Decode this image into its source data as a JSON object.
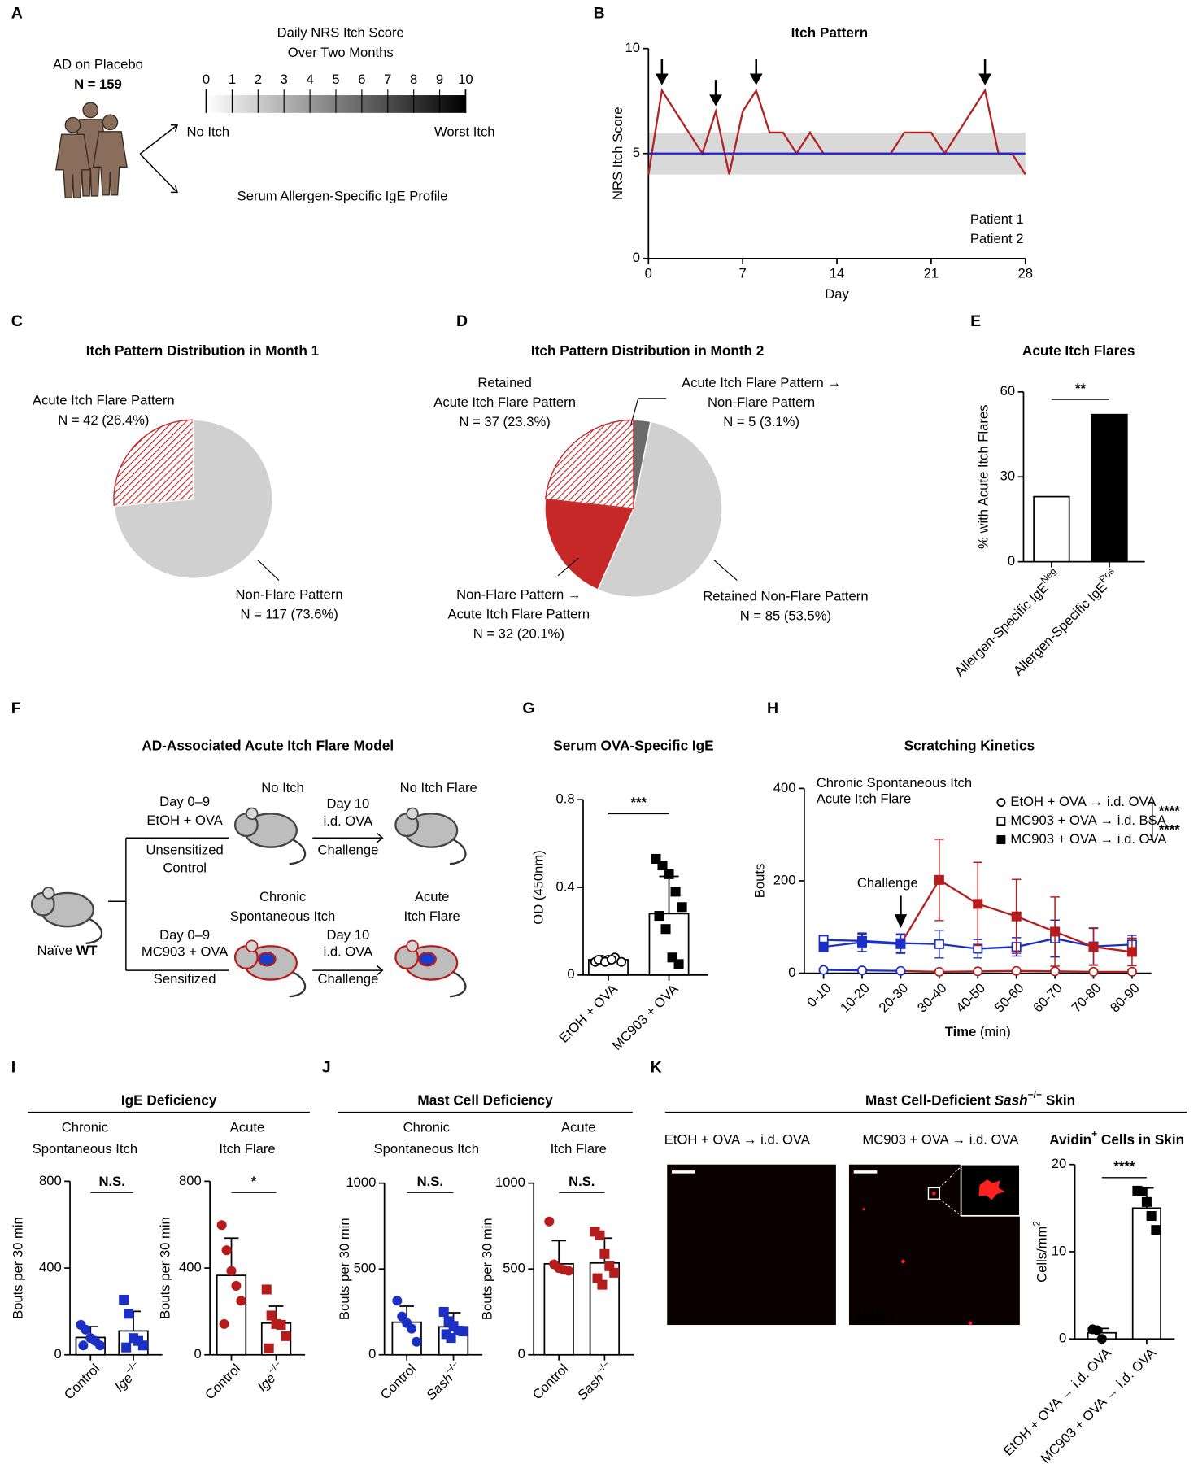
{
  "panel_letters": [
    "A",
    "B",
    "C",
    "D",
    "E",
    "F",
    "G",
    "H",
    "I",
    "J",
    "K"
  ],
  "diagram_a": {
    "cohort": "AD on Placebo",
    "n": "N = 159",
    "scale_title": [
      "Daily NRS Itch Score",
      "Over Two Months"
    ],
    "scale_ticks": [
      0,
      1,
      2,
      3,
      4,
      5,
      6,
      7,
      8,
      9,
      10
    ],
    "scale_low": "No Itch",
    "scale_high": "Worst Itch",
    "outcome": "Serum Allergen-Specific IgE Profile"
  },
  "diagram_f": {
    "title": "AD-Associated Acute Itch Flare Model",
    "start": {
      "text": "Naïve ",
      "bold": "WT"
    },
    "top": {
      "days": "Day 0–9",
      "treatment": "EtOH + OVA",
      "group": [
        "Unsensitized",
        "Control"
      ],
      "state": [
        "No Itch"
      ],
      "challenge_day": "Day 10",
      "challenge": "i.d. OVA",
      "challenge_label": "Challenge",
      "outcome": [
        "No Itch Flare"
      ]
    },
    "bottom": {
      "days": "Day 0–9",
      "treatment": "MC903 + OVA",
      "group": [
        "Sensitized"
      ],
      "state": [
        "Chronic",
        "Spontaneous Itch"
      ],
      "challenge_day": "Day 10",
      "challenge": "i.d. OVA",
      "challenge_label": "Challenge",
      "outcome": [
        "Acute",
        "Itch Flare"
      ]
    }
  },
  "panel_k": {
    "title": {
      "text": "Mast Cell-Deficient ",
      "italic": "Sash",
      "sup": "−/−",
      "tail": " Skin"
    },
    "images": [
      "EtOH + OVA → i.d. OVA",
      "MC903 + OVA → i.d. OVA"
    ],
    "stain": "Avidin"
  },
  "chart_data": [
    {
      "type": "line",
      "title": "Itch Pattern",
      "x_label": "Day",
      "y_label": "NRS Itch Score",
      "x": [
        0,
        1,
        2,
        3,
        4,
        5,
        6,
        7,
        8,
        9,
        10,
        11,
        12,
        13,
        14,
        15,
        16,
        17,
        18,
        19,
        20,
        21,
        22,
        23,
        24,
        25,
        26,
        27,
        28
      ],
      "xlim": [
        0,
        28
      ],
      "xticks": [
        0,
        7,
        14,
        21,
        28
      ],
      "ylim": [
        0,
        10
      ],
      "yticks": [
        0,
        5,
        10
      ],
      "band": [
        4,
        6
      ],
      "band_color": "#d9d9d9",
      "arrows": [
        1,
        5,
        8,
        25
      ],
      "legend": "lower right",
      "series": [
        {
          "name": "Patient 1",
          "color": "#b22222",
          "values": [
            4,
            8,
            7,
            6,
            5,
            7,
            4,
            7,
            8,
            6,
            6,
            5,
            6,
            5,
            5,
            5,
            5,
            5,
            5,
            6,
            6,
            6,
            5,
            6,
            7,
            8,
            5,
            5,
            4
          ]
        },
        {
          "name": "Patient 2",
          "color": "#2323c8",
          "values": [
            5,
            5,
            5,
            5,
            5,
            5,
            5,
            5,
            5,
            5,
            5,
            5,
            5,
            5,
            5,
            5,
            5,
            5,
            5,
            5,
            5,
            5,
            5,
            5,
            5,
            5,
            5,
            5,
            5
          ]
        }
      ]
    },
    {
      "type": "pie",
      "title": "Itch Pattern Distribution in Month 1",
      "categories": [
        [
          "Acute Itch Flare Pattern"
        ],
        [
          "Non-Flare Pattern"
        ]
      ],
      "values": [
        26.4,
        73.6
      ],
      "value_labels": [
        "N = 42 (26.4%)",
        "N = 117 (73.6%)"
      ],
      "colors": [
        "#c62828",
        "#d0d0d0"
      ],
      "hatch": [
        true,
        false
      ]
    },
    {
      "type": "pie",
      "title": "Itch Pattern Distribution in Month 2",
      "categories": [
        [
          "Acute Itch Flare Pattern →",
          "Non-Flare Pattern"
        ],
        [
          "Retained Non-Flare Pattern"
        ],
        [
          "Non-Flare Pattern →",
          "Acute Itch Flare Pattern"
        ],
        [
          "Retained",
          "Acute Itch Flare Pattern"
        ]
      ],
      "values": [
        3.1,
        53.5,
        20.1,
        23.3
      ],
      "value_labels": [
        "N = 5 (3.1%)",
        "N = 85 (53.5%)",
        "N = 32 (20.1%)",
        "N = 37 (23.3%)"
      ],
      "colors": [
        "#6b6b6b",
        "#d0d0d0",
        "#c62828",
        "#c62828"
      ],
      "hatch": [
        false,
        false,
        false,
        true
      ]
    },
    {
      "type": "bar",
      "title": "Acute Itch Flares",
      "y_label": "% with Acute Itch Flares",
      "categories": [
        {
          "text": "Allergen-Specific IgE",
          "sup": "Neg"
        },
        {
          "text": "Allergen-Specific IgE",
          "sup": "Pos"
        }
      ],
      "values": [
        23,
        52
      ],
      "bar_colors": [
        "#ffffff",
        "#000000"
      ],
      "significance": "**",
      "ylim": [
        0,
        60
      ],
      "yticks": [
        0,
        30,
        60
      ]
    },
    {
      "type": "bar",
      "title": "Serum OVA-Specific IgE",
      "y_label": "OD (450nm)",
      "categories": [
        "EtOH + OVA",
        "MC903 + OVA"
      ],
      "values": [
        0.07,
        0.28
      ],
      "errors": [
        0.01,
        0.17
      ],
      "points": [
        [
          0.06,
          0.07,
          0.07,
          0.08,
          0.06,
          0.07,
          0.06,
          0.07
        ],
        [
          0.53,
          0.5,
          0.46,
          0.38,
          0.31,
          0.27,
          0.21,
          0.08,
          0.05
        ]
      ],
      "point_markers": [
        "circle-open",
        "square"
      ],
      "point_colors": [
        "#000000",
        "#000000"
      ],
      "bar_colors": [
        "#ffffff",
        "#ffffff"
      ],
      "significance": "***",
      "ylim": [
        0,
        0.8
      ],
      "yticks": [
        0,
        0.4,
        0.8
      ]
    },
    {
      "type": "line",
      "title": "Scratching Kinetics",
      "x_label": {
        "bold": "Time",
        "tail": " (min)"
      },
      "y_label": "Bouts",
      "categories": [
        "0-10",
        "10-20",
        "20-30",
        "30-40",
        "40-50",
        "50-60",
        "60-70",
        "70-80",
        "80-90"
      ],
      "ylim": [
        0,
        400
      ],
      "yticks": [
        0,
        200,
        400
      ],
      "color_key": [
        {
          "name": "Chronic Spontaneous Itch",
          "color": "#1c2fc4"
        },
        {
          "name": "Acute Itch Flare",
          "color": "#b71c1c"
        }
      ],
      "challenge": {
        "label": "Challenge",
        "category": 2
      },
      "legend_color": "#000000",
      "significance": [
        "****",
        "****"
      ],
      "series": [
        {
          "name": "EtOH + OVA → i.d. OVA",
          "marker": "circle-open",
          "color": "#1c2fc4",
          "flare_color": "#b71c1c",
          "values": [
            7,
            6,
            5,
            3,
            4,
            5,
            4,
            3,
            3
          ],
          "errors": [
            3,
            3,
            3,
            3,
            3,
            3,
            3,
            3,
            3
          ]
        },
        {
          "name": "MC903 + OVA → i.d. BSA",
          "marker": "square-open",
          "color": "#1c2fc4",
          "values": [
            72,
            70,
            65,
            63,
            53,
            57,
            75,
            58,
            62
          ],
          "errors": [
            10,
            15,
            20,
            30,
            20,
            20,
            40,
            40,
            20
          ]
        },
        {
          "name": "MC903 + OVA → i.d. OVA",
          "marker": "square",
          "color": "#1c2fc4",
          "flare_color": "#b71c1c",
          "values": [
            57,
            67,
            63,
            202,
            150,
            123,
            90,
            57,
            46
          ],
          "errors": [
            10,
            20,
            20,
            88,
            90,
            80,
            75,
            40,
            30
          ]
        }
      ]
    },
    {
      "type": "bar",
      "group_title": "IgE Deficiency",
      "title": [
        "Chronic",
        "Spontaneous Itch"
      ],
      "y_label": "Bouts per 30 min",
      "categories": [
        "Control",
        {
          "italic": "Ige",
          "sup": "−/−"
        }
      ],
      "values": [
        80,
        110
      ],
      "errors": [
        50,
        90
      ],
      "points": [
        [
          138,
          116,
          77,
          64,
          43,
          43
        ],
        [
          254,
          189,
          77,
          64,
          43,
          34
        ]
      ],
      "point_markers": [
        "circle",
        "square"
      ],
      "point_colors": [
        "#1c2fc4",
        "#1c2fc4"
      ],
      "bar_colors": [
        "#ffffff",
        "#ffffff"
      ],
      "significance": "N.S.",
      "ylim": [
        0,
        800
      ],
      "yticks": [
        0,
        400,
        800
      ]
    },
    {
      "type": "bar",
      "title": [
        "Acute",
        "Itch Flare"
      ],
      "y_label": "Bouts per 30 min",
      "categories": [
        "Control",
        {
          "italic": "Ige",
          "sup": "−/−"
        }
      ],
      "values": [
        366,
        146
      ],
      "errors": [
        172,
        78
      ],
      "points": [
        [
          598,
          482,
          387,
          318,
          249,
          142
        ],
        [
          301,
          181,
          142,
          138,
          86,
          30
        ]
      ],
      "point_markers": [
        "circle",
        "square"
      ],
      "point_colors": [
        "#b71c1c",
        "#b71c1c"
      ],
      "bar_colors": [
        "#ffffff",
        "#ffffff"
      ],
      "significance": "*",
      "ylim": [
        0,
        800
      ],
      "yticks": [
        0,
        400,
        800
      ]
    },
    {
      "type": "bar",
      "group_title": "Mast Cell Deficiency",
      "title": [
        "Chronic",
        "Spontaneous Itch"
      ],
      "y_label": "Bouts per 30 min",
      "categories": [
        "Control",
        {
          "italic": "Sash",
          "sup": "−/−"
        }
      ],
      "values": [
        190,
        163
      ],
      "errors": [
        93,
        82
      ],
      "points": [
        [
          315,
          223,
          185,
          152,
          76
        ],
        [
          250,
          196,
          168,
          141,
          136,
          120,
          98
        ]
      ],
      "point_markers": [
        "circle",
        "square"
      ],
      "point_colors": [
        "#1c2fc4",
        "#1c2fc4"
      ],
      "bar_colors": [
        "#ffffff",
        "#ffffff"
      ],
      "significance": "N.S.",
      "ylim": [
        0,
        1000
      ],
      "yticks": [
        0,
        500,
        1000
      ]
    },
    {
      "type": "bar",
      "title": [
        "Acute",
        "Itch Flare"
      ],
      "y_label": "Bouts per 30 min",
      "categories": [
        "Control",
        {
          "italic": "Sash",
          "sup": "−/−"
        }
      ],
      "values": [
        530,
        535
      ],
      "errors": [
        135,
        145
      ],
      "points": [
        [
          777,
          527,
          505,
          495,
          489
        ],
        [
          717,
          696,
          587,
          516,
          478,
          446,
          408
        ]
      ],
      "point_markers": [
        "circle",
        "square"
      ],
      "point_colors": [
        "#b71c1c",
        "#b71c1c"
      ],
      "bar_colors": [
        "#ffffff",
        "#ffffff"
      ],
      "significance": "N.S.",
      "ylim": [
        0,
        1000
      ],
      "yticks": [
        0,
        500,
        1000
      ]
    },
    {
      "type": "bar",
      "title": {
        "text": "Avidin",
        "sup": "+",
        "tail": " Cells in Skin"
      },
      "y_label": {
        "text": "Cells/mm",
        "sup": "2"
      },
      "categories": [
        "EtOH + OVA → i.d. OVA",
        "MC903 + OVA → i.d. OVA"
      ],
      "values": [
        0.7,
        15
      ],
      "errors": [
        0.5,
        2.3
      ],
      "points": [
        [
          1.1,
          1,
          0
        ],
        [
          17,
          16.9,
          15.7,
          14.1,
          12.5
        ]
      ],
      "point_markers": [
        "circle",
        "square"
      ],
      "point_colors": [
        "#000000",
        "#000000"
      ],
      "bar_colors": [
        "#ffffff",
        "#ffffff"
      ],
      "significance": "****",
      "ylim": [
        0,
        20
      ],
      "yticks": [
        0,
        10,
        20
      ]
    }
  ]
}
